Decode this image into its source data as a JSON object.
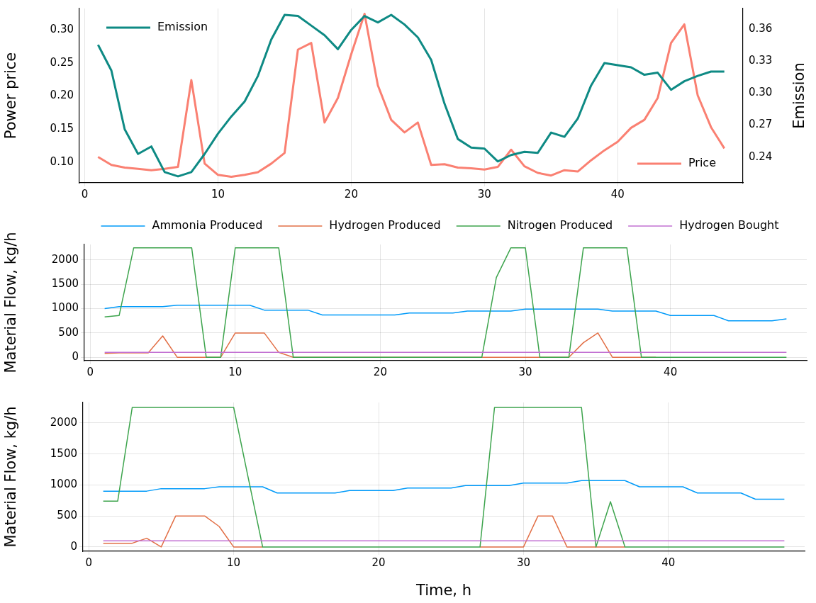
{
  "chart_data": [
    {
      "type": "line",
      "ylabel": "Power price",
      "y2label": "Emission",
      "x": [
        1,
        2,
        3,
        4,
        5,
        6,
        7,
        8,
        9,
        10,
        11,
        12,
        13,
        14,
        15,
        16,
        17,
        18,
        19,
        20,
        21,
        22,
        23,
        24,
        25,
        26,
        27,
        28,
        29,
        30,
        31,
        32,
        33,
        34,
        35,
        36,
        37,
        38,
        39,
        40,
        41,
        42,
        43,
        44,
        45,
        46,
        47,
        48
      ],
      "xlim": [
        -0.4,
        49.4
      ],
      "xticks": [
        0,
        10,
        20,
        30,
        40
      ],
      "ylim": [
        0.069,
        0.332
      ],
      "yticks": [
        {
          "value": 0.1,
          "label": "0.10"
        },
        0.15,
        {
          "value": 0.2,
          "label": "0.20"
        },
        0.25,
        {
          "value": 0.3,
          "label": "0.30"
        }
      ],
      "y2lim": [
        0.216,
        0.379
      ],
      "y2ticks": [
        0.24,
        0.27,
        {
          "value": 0.3,
          "label": "0.30"
        },
        0.33,
        0.36
      ],
      "grid": "x",
      "legend": "top left",
      "series": [
        {
          "name": "Price",
          "color": "#fa8072",
          "values": [
            0.108,
            0.096,
            0.092,
            0.09,
            0.088,
            0.09,
            0.093,
            0.224,
            0.098,
            0.081,
            0.078,
            0.081,
            0.085,
            0.098,
            0.114,
            0.27,
            0.28,
            0.16,
            0.197,
            0.263,
            0.324,
            0.216,
            0.164,
            0.145,
            0.16,
            0.096,
            0.097,
            0.092,
            0.091,
            0.089,
            0.093,
            0.119,
            0.094,
            0.084,
            0.08,
            0.088,
            0.086,
            0.103,
            0.118,
            0.131,
            0.152,
            0.164,
            0.197,
            0.28,
            0.308,
            0.201,
            0.153,
            0.121
          ]
        },
        {
          "name": "Emission",
          "color": "#0e8a84",
          "axis": "y2",
          "values": [
            0.345,
            0.321,
            0.266,
            0.243,
            0.25,
            0.226,
            0.222,
            0.226,
            0.243,
            0.262,
            0.278,
            0.292,
            0.316,
            0.35,
            0.373,
            0.372,
            0.363,
            0.354,
            0.341,
            0.359,
            0.372,
            0.366,
            0.373,
            0.364,
            0.352,
            0.331,
            0.29,
            0.257,
            0.249,
            0.248,
            0.236,
            0.242,
            0.245,
            0.244,
            0.263,
            0.259,
            0.276,
            0.307,
            0.328,
            0.326,
            0.324,
            0.317,
            0.319,
            0.303,
            0.311,
            0.316,
            0.32,
            0.32
          ]
        }
      ]
    },
    {
      "type": "line",
      "ylabel": "Material Flow, kg/h",
      "x": [
        1,
        2,
        3,
        4,
        5,
        6,
        7,
        8,
        9,
        10,
        11,
        12,
        13,
        14,
        15,
        16,
        17,
        18,
        19,
        20,
        21,
        22,
        23,
        24,
        25,
        26,
        27,
        28,
        29,
        30,
        31,
        32,
        33,
        34,
        35,
        36,
        37,
        38,
        39,
        40,
        41,
        42,
        43,
        44,
        45,
        46,
        47,
        48
      ],
      "xlim": [
        -0.4,
        49.4
      ],
      "xticks": [
        0,
        10,
        20,
        30,
        40
      ],
      "ylim": [
        -70,
        2320
      ],
      "yticks": [
        0,
        500,
        1000,
        1500,
        2000
      ],
      "grid": true,
      "legend": "top",
      "series": [
        {
          "name": "Ammonia Produced",
          "color": "#009af9",
          "values": [
            1000,
            1040,
            1040,
            1040,
            1040,
            1070,
            1070,
            1070,
            1070,
            1070,
            1070,
            970,
            970,
            970,
            970,
            870,
            870,
            870,
            870,
            870,
            870,
            910,
            910,
            910,
            910,
            950,
            950,
            950,
            950,
            990,
            990,
            990,
            990,
            990,
            990,
            950,
            950,
            950,
            950,
            860,
            860,
            860,
            860,
            750,
            750,
            750,
            750,
            790
          ]
        },
        {
          "name": "Hydrogen Produced",
          "color": "#e26f46",
          "values": [
            80,
            90,
            90,
            90,
            440,
            0,
            0,
            0,
            0,
            500,
            500,
            500,
            100,
            0,
            0,
            0,
            0,
            0,
            0,
            0,
            0,
            0,
            0,
            0,
            0,
            0,
            0,
            0,
            0,
            0,
            0,
            0,
            0,
            300,
            500,
            0,
            0,
            0,
            0,
            null,
            null,
            null,
            null,
            null,
            null,
            null,
            null,
            null
          ]
        },
        {
          "name": "Nitrogen Produced",
          "color": "#3da44d",
          "values": [
            830,
            860,
            2250,
            2250,
            2250,
            2250,
            2250,
            0,
            0,
            2250,
            2250,
            2250,
            2250,
            0,
            0,
            0,
            0,
            0,
            0,
            0,
            0,
            0,
            0,
            0,
            0,
            0,
            0,
            1640,
            2250,
            2250,
            0,
            0,
            0,
            2250,
            2250,
            2250,
            2250,
            0,
            0,
            0,
            0,
            0,
            0,
            0,
            0,
            0,
            0,
            0
          ]
        },
        {
          "name": "Hydrogen Bought",
          "color": "#c271d2",
          "values": [
            100,
            100,
            100,
            100,
            100,
            100,
            100,
            100,
            100,
            100,
            100,
            100,
            100,
            100,
            100,
            100,
            100,
            100,
            100,
            100,
            100,
            100,
            100,
            100,
            100,
            100,
            100,
            100,
            100,
            100,
            100,
            100,
            100,
            100,
            100,
            100,
            100,
            100,
            100,
            100,
            100,
            100,
            100,
            100,
            100,
            100,
            100,
            100
          ]
        }
      ]
    },
    {
      "type": "line",
      "ylabel": "Material Flow, kg/h",
      "xlabel": "Time, h",
      "x": [
        1,
        2,
        3,
        4,
        5,
        6,
        7,
        8,
        9,
        10,
        11,
        12,
        13,
        14,
        15,
        16,
        17,
        18,
        19,
        20,
        21,
        22,
        23,
        24,
        25,
        26,
        27,
        28,
        29,
        30,
        31,
        32,
        33,
        34,
        35,
        36,
        37,
        38,
        39,
        40,
        41,
        42,
        43,
        44,
        45,
        46,
        47,
        48
      ],
      "xlim": [
        -0.4,
        49.4
      ],
      "xticks": [
        0,
        10,
        20,
        30,
        40
      ],
      "ylim": [
        -70,
        2330
      ],
      "yticks": [
        0,
        500,
        1000,
        1500,
        2000
      ],
      "grid": true,
      "series": [
        {
          "color": "#009af9",
          "values": [
            900,
            900,
            900,
            900,
            940,
            940,
            940,
            940,
            970,
            970,
            970,
            970,
            870,
            870,
            870,
            870,
            870,
            910,
            910,
            910,
            910,
            950,
            950,
            950,
            950,
            990,
            990,
            990,
            990,
            1030,
            1030,
            1030,
            1030,
            1070,
            1070,
            1070,
            1070,
            970,
            970,
            970,
            970,
            870,
            870,
            870,
            870,
            770,
            770,
            770
          ]
        },
        {
          "color": "#e26f46",
          "values": [
            60,
            60,
            60,
            140,
            0,
            500,
            500,
            500,
            330,
            0,
            0,
            0,
            null,
            null,
            null,
            null,
            null,
            null,
            null,
            null,
            null,
            null,
            null,
            null,
            null,
            null,
            0,
            0,
            0,
            0,
            500,
            500,
            0,
            0,
            0,
            0,
            0,
            null,
            null,
            null,
            null,
            null,
            null,
            null,
            null,
            null,
            null,
            null
          ]
        },
        {
          "color": "#3da44d",
          "values": [
            740,
            740,
            2250,
            2250,
            2250,
            2250,
            2250,
            2250,
            2250,
            2250,
            1120,
            0,
            0,
            0,
            0,
            0,
            0,
            0,
            0,
            0,
            0,
            0,
            0,
            0,
            0,
            0,
            0,
            2250,
            2250,
            2250,
            2250,
            2250,
            2250,
            2250,
            0,
            730,
            0,
            0,
            0,
            0,
            0,
            0,
            0,
            0,
            0,
            0,
            0,
            0
          ]
        },
        {
          "color": "#c271d2",
          "values": [
            100,
            100,
            100,
            100,
            100,
            100,
            100,
            100,
            100,
            100,
            100,
            100,
            100,
            100,
            100,
            100,
            100,
            100,
            100,
            100,
            100,
            100,
            100,
            100,
            100,
            100,
            100,
            100,
            100,
            100,
            100,
            100,
            100,
            100,
            100,
            100,
            100,
            100,
            100,
            100,
            100,
            100,
            100,
            100,
            100,
            100,
            100,
            100
          ]
        }
      ]
    }
  ]
}
